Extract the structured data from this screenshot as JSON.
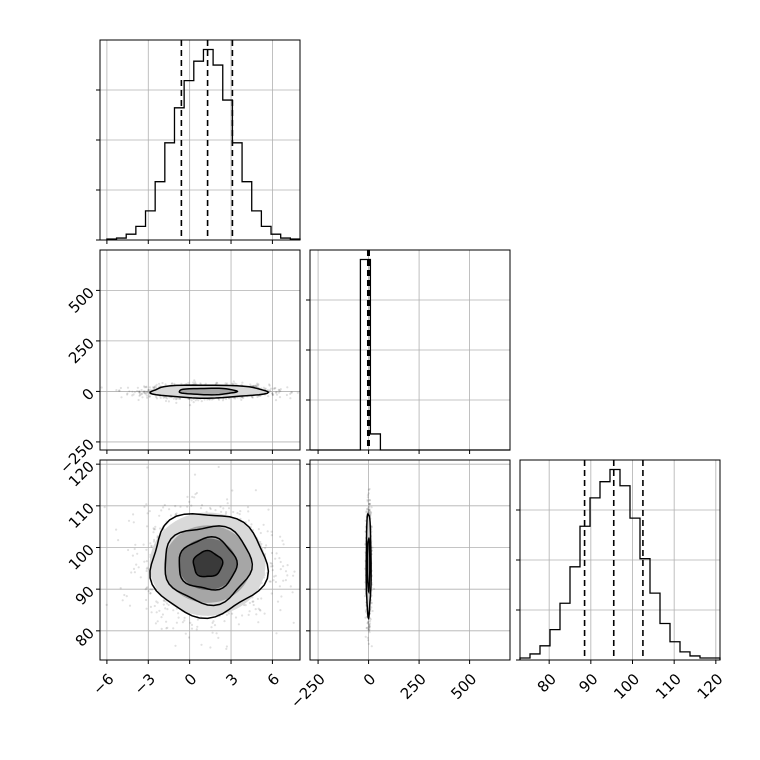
{
  "chart_data": {
    "type": "corner",
    "dimensions": 3,
    "grid": true,
    "colors": {
      "line": "#000000",
      "grid": "#b0b0b0",
      "background": "#ffffff"
    },
    "variables": [
      {
        "range": [
          -6.5,
          8.0
        ],
        "ticks": [
          -6,
          -3,
          0,
          3,
          6
        ],
        "tick_labels": [
          "−6",
          "−3",
          "0",
          "3",
          "6"
        ]
      },
      {
        "range": [
          -290,
          700
        ],
        "ticks": [
          -250,
          0,
          250,
          500
        ],
        "tick_labels": [
          "−250",
          "0",
          "250",
          "500"
        ]
      },
      {
        "range": [
          73,
          121
        ],
        "ticks": [
          80,
          90,
          100,
          110,
          120
        ],
        "tick_labels": [
          "80",
          "90",
          "100",
          "110",
          "120"
        ]
      }
    ],
    "quantiles": [
      [
        -0.6,
        1.3,
        3.1
      ],
      [
        -4,
        0,
        3
      ],
      [
        88.5,
        95.5,
        102.5
      ]
    ],
    "hist_0": {
      "edges": [
        -6.0,
        -5.3,
        -4.6,
        -3.9,
        -3.2,
        -2.5,
        -1.8,
        -1.1,
        -0.4,
        0.3,
        1.0,
        1.7,
        2.4,
        3.1,
        3.8,
        4.5,
        5.2,
        5.9,
        6.6,
        7.3,
        8.0
      ],
      "counts": [
        0.005,
        0.01,
        0.03,
        0.07,
        0.15,
        0.3,
        0.5,
        0.68,
        0.82,
        0.92,
        0.98,
        0.9,
        0.72,
        0.5,
        0.3,
        0.15,
        0.07,
        0.03,
        0.01,
        0.005
      ]
    },
    "hist_1": {
      "edges": [
        -288,
        -238.5,
        -189,
        -139.5,
        -90,
        -40.5,
        9,
        58.5,
        108,
        157.5,
        207,
        256.5,
        306,
        355.5,
        405,
        454.5,
        504,
        553.5,
        603,
        652.5,
        702
      ],
      "counts": [
        0,
        0,
        0,
        0,
        0,
        0.95,
        0.08,
        0,
        0,
        0,
        0,
        0,
        0,
        0,
        0,
        0,
        0,
        0,
        0,
        0
      ]
    },
    "hist_2": {
      "edges": [
        73.0,
        75.4,
        77.8,
        80.2,
        82.6,
        85.0,
        87.4,
        89.8,
        92.2,
        94.6,
        97.0,
        99.4,
        101.8,
        104.2,
        106.6,
        109.0,
        111.4,
        113.8,
        116.2,
        118.6,
        121.0
      ],
      "counts": [
        0.01,
        0.03,
        0.07,
        0.15,
        0.28,
        0.46,
        0.66,
        0.8,
        0.88,
        0.94,
        0.86,
        0.7,
        0.5,
        0.33,
        0.18,
        0.09,
        0.04,
        0.02,
        0.01,
        0.01
      ]
    },
    "pair_1_0": {
      "center": [
        1.3,
        0
      ],
      "std": [
        2.1,
        16
      ],
      "levels_sigma": [
        1.0,
        2.0
      ]
    },
    "pair_2_0": {
      "center": [
        1.3,
        96.0
      ],
      "std": [
        2.1,
        6.2
      ],
      "levels_sigma": [
        0.5,
        1.0,
        1.5,
        2.0
      ]
    },
    "pair_2_1": {
      "center": [
        0,
        96.0
      ],
      "std": [
        6,
        6.2
      ],
      "levels_sigma": [
        1.0,
        2.0
      ]
    }
  }
}
